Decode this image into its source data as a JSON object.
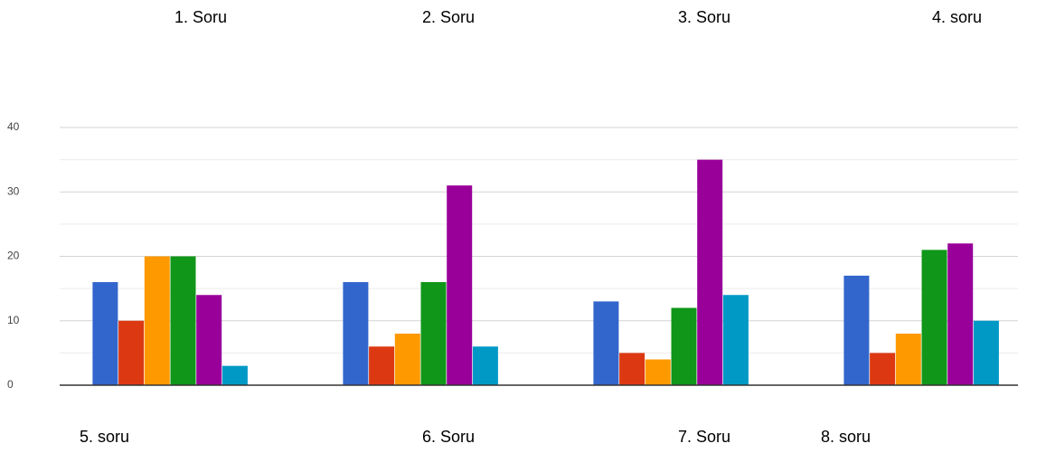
{
  "chart_data": {
    "type": "bar",
    "labels_top": [
      "1. Soru",
      "2. Soru",
      "3. Soru",
      "4. soru"
    ],
    "labels_bottom": [
      "5. soru",
      "6. Soru",
      "7. Soru",
      "8. soru"
    ],
    "categories": [
      null,
      null,
      null,
      null
    ],
    "series": [
      {
        "color": "#3366cc",
        "values": [
          16,
          16,
          13,
          17
        ]
      },
      {
        "color": "#dc3912",
        "values": [
          10,
          6,
          5,
          5
        ]
      },
      {
        "color": "#ff9900",
        "values": [
          20,
          8,
          4,
          8
        ]
      },
      {
        "color": "#109618",
        "values": [
          20,
          16,
          12,
          21
        ]
      },
      {
        "color": "#990099",
        "values": [
          14,
          31,
          35,
          22
        ]
      },
      {
        "color": "#0099c6",
        "values": [
          3,
          6,
          14,
          10
        ]
      }
    ],
    "ylim": [
      0,
      40
    ],
    "yticks": [
      0,
      10,
      20,
      30,
      40
    ],
    "minor_yticks": [
      5,
      15,
      25,
      35
    ],
    "grid": true
  }
}
